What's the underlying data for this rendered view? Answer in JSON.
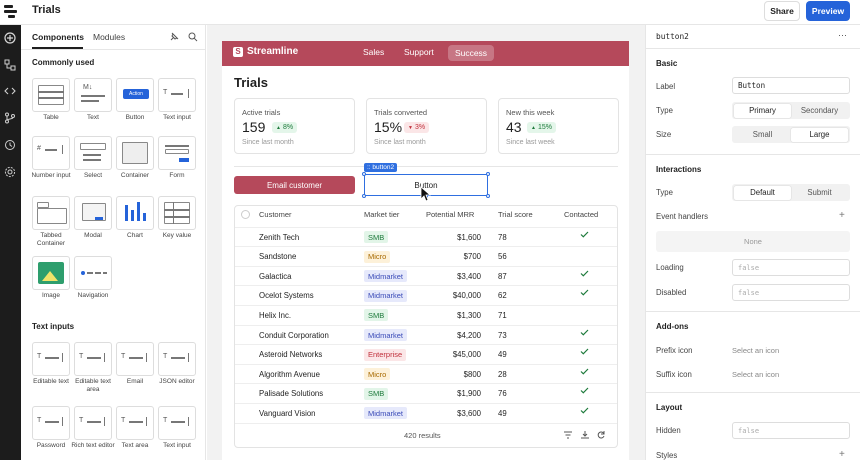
{
  "app": {
    "title": "Trials"
  },
  "header": {
    "share_label": "Share",
    "preview_label": "Preview",
    "accent": "#2563d9"
  },
  "rail": {
    "icons": [
      "add-icon",
      "component-tree-icon",
      "code-icon",
      "branch-icon",
      "history-icon",
      "settings-icon"
    ]
  },
  "components_panel": {
    "tabs": [
      "Components",
      "Modules"
    ],
    "section_common": "Commonly used",
    "common": [
      "Table",
      "Text",
      "Button",
      "Text input",
      "Number input",
      "Select",
      "Container",
      "Form",
      "Tabbed Container",
      "Modal",
      "Chart",
      "Key value",
      "Image",
      "Navigation"
    ],
    "button_tile_text": "Action",
    "text_tile_text": "M↓",
    "section_text_inputs": "Text inputs",
    "text_inputs": [
      "Editable text",
      "Editable text area",
      "Email",
      "JSON editor",
      "Password",
      "Rich text editor",
      "Text area",
      "Text input"
    ]
  },
  "canvas": {
    "brand": "Streamline",
    "brand_color": "#b5495b",
    "nav": [
      "Sales",
      "Support",
      "Success"
    ],
    "page_title": "Trials",
    "stats": [
      {
        "title": "Active trials",
        "value": "159",
        "delta": "8%",
        "dir": "up",
        "sub": "Since last month"
      },
      {
        "title": "Trials converted",
        "value": "15%",
        "delta": "3%",
        "dir": "down",
        "sub": "Since last month"
      },
      {
        "title": "New this week",
        "value": "43",
        "delta": "15%",
        "dir": "up",
        "sub": "Since last week"
      }
    ],
    "email_button": "Email customer",
    "selected_button_label": "Button",
    "selected_tag": ":: button2",
    "table": {
      "columns": [
        "Customer",
        "Market tier",
        "Potential MRR",
        "Trial score",
        "Contacted"
      ],
      "rows": [
        {
          "customer": "Zenith Tech",
          "tier": "SMB",
          "mrr": "$1,600",
          "score": "78",
          "contacted": true
        },
        {
          "customer": "Sandstone",
          "tier": "Micro",
          "mrr": "$700",
          "score": "56",
          "contacted": false
        },
        {
          "customer": "Galactica",
          "tier": "Midmarket",
          "mrr": "$3,400",
          "score": "87",
          "contacted": true
        },
        {
          "customer": "Ocelot Systems",
          "tier": "Midmarket",
          "mrr": "$40,000",
          "score": "62",
          "contacted": true
        },
        {
          "customer": "Helix Inc.",
          "tier": "SMB",
          "mrr": "$1,300",
          "score": "71",
          "contacted": false
        },
        {
          "customer": "Conduit Corporation",
          "tier": "Midmarket",
          "mrr": "$4,200",
          "score": "73",
          "contacted": true
        },
        {
          "customer": "Asteroid Networks",
          "tier": "Enterprise",
          "mrr": "$45,000",
          "score": "49",
          "contacted": true
        },
        {
          "customer": "Algorithm Avenue",
          "tier": "Micro",
          "mrr": "$800",
          "score": "28",
          "contacted": true
        },
        {
          "customer": "Palisade Solutions",
          "tier": "SMB",
          "mrr": "$1,900",
          "score": "76",
          "contacted": true
        },
        {
          "customer": "Vanguard Vision",
          "tier": "Midmarket",
          "mrr": "$3,600",
          "score": "49",
          "contacted": true
        }
      ],
      "results": "420 results",
      "tier_colors": {
        "SMB": [
          "#e2f5e8",
          "#1d7a3b"
        ],
        "Micro": [
          "#fdf1d9",
          "#a86a00"
        ],
        "Midmarket": [
          "#e6e9fb",
          "#3a4bb8"
        ],
        "Enterprise": [
          "#fbe6e7",
          "#c0303c"
        ]
      }
    }
  },
  "props": {
    "component": "button2",
    "more": "⋯",
    "basic": "Basic",
    "label_l": "Label",
    "label_v": "Button",
    "type_l": "Type",
    "type_opts": [
      "Primary",
      "Secondary"
    ],
    "size_l": "Size",
    "size_opts": [
      "Small",
      "Large"
    ],
    "interactions": "Interactions",
    "itype_l": "Type",
    "itype_opts": [
      "Default",
      "Submit"
    ],
    "handlers_l": "Event handlers",
    "handlers_none": "None",
    "loading_l": "Loading",
    "loading_v": "false",
    "disabled_l": "Disabled",
    "disabled_v": "false",
    "addons": "Add-ons",
    "prefix_l": "Prefix icon",
    "prefix_v": "Select an icon",
    "suffix_l": "Suffix icon",
    "suffix_v": "Select an icon",
    "layout": "Layout",
    "hidden_l": "Hidden",
    "hidden_v": "false",
    "styles_l": "Styles"
  }
}
